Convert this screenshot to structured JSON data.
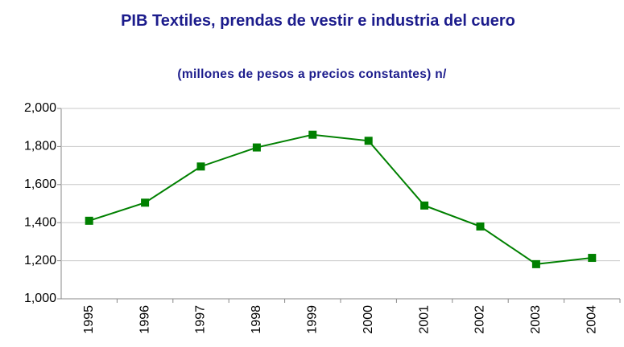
{
  "chart_data": {
    "type": "line",
    "title": "PIB Textiles, prendas de vestir e industria del cuero",
    "subtitle": "(millones de pesos a precios constantes) n/",
    "categories": [
      "1995",
      "1996",
      "1997",
      "1998",
      "1999",
      "2000",
      "2001",
      "2002",
      "2003",
      "2004"
    ],
    "values": [
      1410,
      1505,
      1695,
      1795,
      1862,
      1830,
      1490,
      1380,
      1182,
      1215
    ],
    "color": "#008000",
    "ylim": [
      1000,
      2000
    ],
    "yticks": [
      {
        "value": 1000,
        "label": "1,000"
      },
      {
        "value": 1200,
        "label": "1,200"
      },
      {
        "value": 1400,
        "label": "1,400"
      },
      {
        "value": 1600,
        "label": "1,600"
      },
      {
        "value": 1800,
        "label": "1,800"
      },
      {
        "value": 2000,
        "label": "2,000"
      }
    ],
    "grid": true
  }
}
